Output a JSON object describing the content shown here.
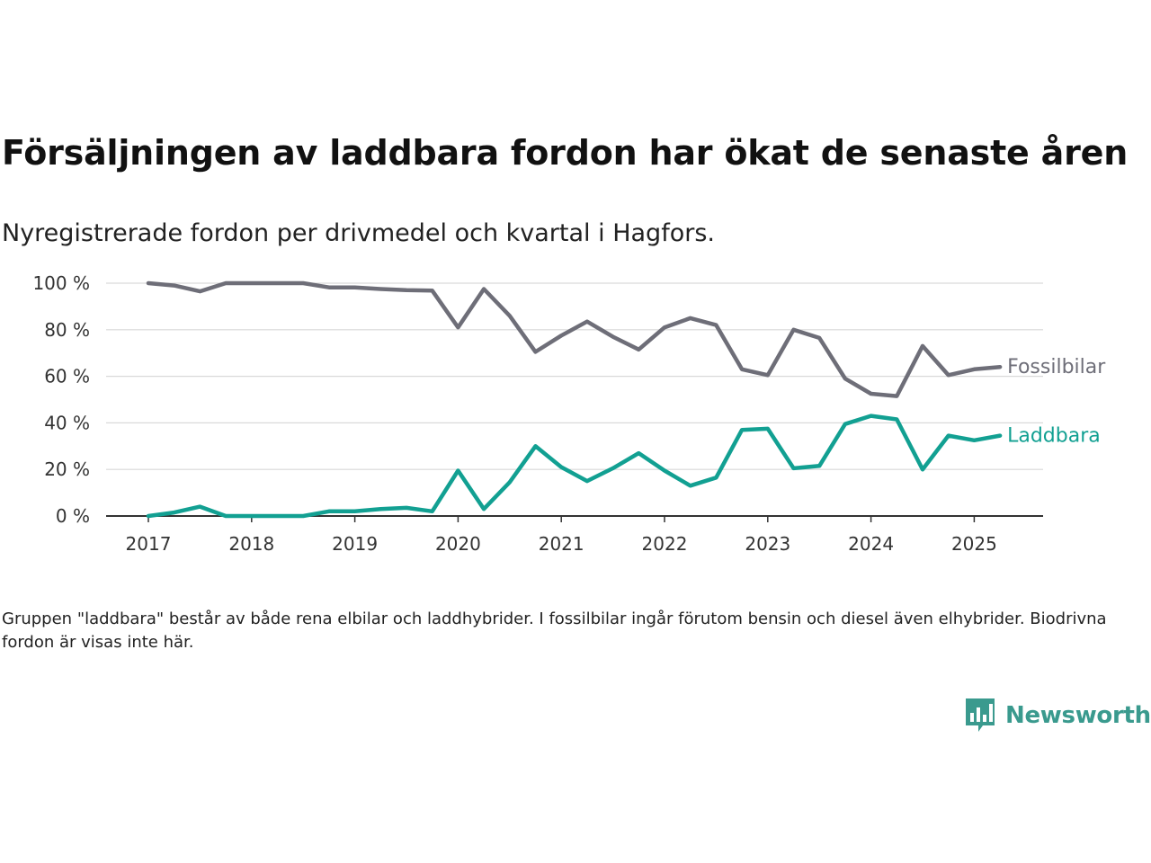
{
  "title": "Försäljningen av laddbara fordon har ökat de senaste åren",
  "subtitle": "Nyregistrerade fordon per drivmedel och kvartal i Hagfors.",
  "caption": "Gruppen \"laddbara\" består av både rena elbilar och laddhybrider. I fossilbilar ingår förutom bensin och diesel även elhybrider. Biodrivna fordon är visas inte här.",
  "brand": {
    "name": "Newsworthy",
    "icon": "newsworthy-logo-icon",
    "color": "#3a9a8e"
  },
  "chart_data": {
    "type": "line",
    "x": [
      2017.0,
      2017.25,
      2017.5,
      2017.75,
      2018.0,
      2018.25,
      2018.5,
      2018.75,
      2019.0,
      2019.25,
      2019.5,
      2019.75,
      2020.0,
      2020.25,
      2020.5,
      2020.75,
      2021.0,
      2021.25,
      2021.5,
      2021.75,
      2022.0,
      2022.25,
      2022.5,
      2022.75,
      2023.0,
      2023.25,
      2023.5,
      2023.75,
      2024.0,
      2024.25,
      2024.5,
      2024.75,
      2025.0,
      2025.25
    ],
    "series": [
      {
        "name": "Fossilbilar",
        "color": "#6e6e78",
        "values": [
          100,
          99,
          96.5,
          100,
          100,
          100,
          100,
          98.2,
          98.2,
          97.5,
          97,
          96.8,
          81,
          97.5,
          86,
          70.5,
          77.5,
          83.5,
          77,
          71.5,
          81,
          85,
          82,
          63,
          60.5,
          80,
          76.5,
          59,
          52.5,
          51.5,
          73,
          60.5,
          63,
          64
        ]
      },
      {
        "name": "Laddbara",
        "color": "#12a092",
        "values": [
          0,
          1.5,
          4,
          0,
          0,
          0,
          0,
          2,
          2,
          3,
          3.5,
          2,
          19.5,
          3,
          14.5,
          30,
          21,
          15,
          20.5,
          27,
          19.5,
          13,
          16.5,
          37,
          37.5,
          20.5,
          21.5,
          39.5,
          43,
          41.5,
          20,
          34.5,
          32.5,
          34.5
        ]
      }
    ],
    "x_ticks": [
      2017,
      2018,
      2019,
      2020,
      2021,
      2022,
      2023,
      2024,
      2025
    ],
    "y_ticks": [
      0,
      20,
      40,
      60,
      80,
      100
    ],
    "y_tick_labels": [
      "0 %",
      "20 %",
      "40 %",
      "60 %",
      "80 %",
      "100 %"
    ],
    "xlim": [
      2016.55,
      2025.65
    ],
    "ylim": [
      0,
      100
    ],
    "grid": true,
    "legend": "inline labels at line ends"
  }
}
